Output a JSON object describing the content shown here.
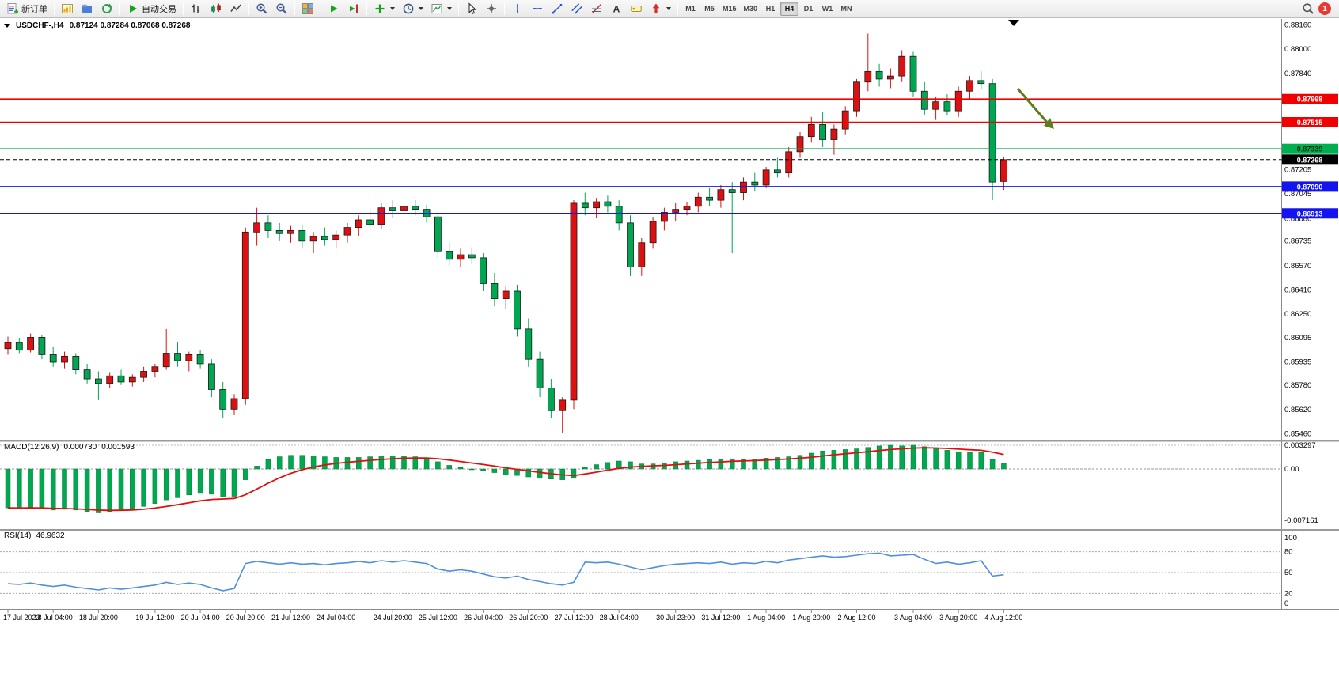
{
  "toolbar": {
    "new_order_label": "新订单",
    "autotrading_label": "自动交易",
    "notification_count": "1",
    "active_timeframe": "H4",
    "timeframes": [
      "M1",
      "M5",
      "M15",
      "M30",
      "H1",
      "H4",
      "D1",
      "W1",
      "MN"
    ],
    "left_icons": [
      {
        "name": "new-chart-icon",
        "kind": "newchart"
      },
      {
        "name": "profiles-icon",
        "kind": "profiles"
      },
      {
        "name": "refresh-icon",
        "kind": "refresh"
      }
    ],
    "tools": [
      {
        "sep": true
      },
      {
        "name": "bar-chart-icon",
        "kind": "ohlcbars"
      },
      {
        "name": "candlestick-chart-icon",
        "kind": "candles2"
      },
      {
        "name": "line-chart-icon",
        "kind": "linechart"
      },
      {
        "sep": true
      },
      {
        "name": "zoom-in-icon",
        "kind": "zoomin"
      },
      {
        "name": "zoom-out-icon",
        "kind": "zoomout"
      },
      {
        "sep": true
      },
      {
        "name": "tile-windows-icon",
        "kind": "tile"
      },
      {
        "sep": true
      },
      {
        "name": "auto-scroll-icon",
        "kind": "autoscroll"
      },
      {
        "name": "chart-shift-icon",
        "kind": "chartshift"
      },
      {
        "sep": true
      },
      {
        "name": "indicators-button",
        "kind": "indicators",
        "caret": true
      },
      {
        "name": "periods-button",
        "kind": "periods",
        "caret": true
      },
      {
        "name": "templates-button",
        "kind": "templates",
        "caret": true
      },
      {
        "sep": true
      },
      {
        "name": "cursor-icon",
        "kind": "cursor"
      },
      {
        "name": "crosshair-icon",
        "kind": "crosshair"
      },
      {
        "sep": true
      },
      {
        "name": "vertical-line-icon",
        "kind": "vline"
      },
      {
        "name": "horizontal-line-icon",
        "kind": "hline"
      },
      {
        "name": "trendline-icon",
        "kind": "tline"
      },
      {
        "name": "equidistant-channel-icon",
        "kind": "channel"
      },
      {
        "name": "fibonacci-icon",
        "kind": "fibo"
      },
      {
        "name": "text-icon",
        "kind": "textA",
        "glyph": "A"
      },
      {
        "name": "text-label-icon",
        "kind": "label"
      },
      {
        "name": "arrows-icon",
        "kind": "arrows",
        "caret": true
      },
      {
        "sep": true
      }
    ]
  },
  "chart_data": {
    "type": "candlestick",
    "symbol": "USDCHF-",
    "timeframe": "H4",
    "title_symbol": "USDCHF-,H4",
    "title_ohlc": "0.87124 0.87284 0.87068 0.87268",
    "current_bar": {
      "open": 0.87124,
      "high": 0.87284,
      "low": 0.87068,
      "close": 0.87268
    },
    "colors": {
      "bull": "#dd1111",
      "bear": "#00a651",
      "macd_hist": "#00a94f",
      "macd_signal": "#e01010",
      "rsi_line": "#4f8fdd",
      "arrow": "#5f7d1c"
    },
    "price_axis": {
      "min": 0.8546,
      "max": 0.8816,
      "labels": [
        "0.88160",
        "0.88000",
        "0.87840",
        "0.87205",
        "0.87045",
        "0.86880",
        "0.86735",
        "0.86570",
        "0.86410",
        "0.86250",
        "0.86095",
        "0.85935",
        "0.85780",
        "0.85620",
        "0.85460"
      ]
    },
    "hlines": [
      {
        "price": 0.87668,
        "label": "0.87668",
        "color": "#f00000"
      },
      {
        "price": 0.87515,
        "label": "0.87515",
        "color": "#f00000"
      },
      {
        "price": 0.87339,
        "label": "0.87339",
        "color": "#00b050",
        "text": "#00320a"
      },
      {
        "price": 0.87268,
        "label": "0.87268",
        "color": "#000000",
        "dash": "5 3",
        "width": 1
      },
      {
        "price": 0.8709,
        "label": "0.87090",
        "color": "#1414f0"
      },
      {
        "price": 0.86913,
        "label": "0.86913",
        "color": "#1414f0"
      }
    ],
    "time_labels": [
      "17 Jul 2023",
      "18 Jul 04:00",
      "18 Jul 20:00",
      "19 Jul 12:00",
      "20 Jul 04:00",
      "20 Jul 20:00",
      "21 Jul 12:00",
      "24 Jul 04:00",
      "24 Jul 20:00",
      "25 Jul 12:00",
      "26 Jul 04:00",
      "26 Jul 20:00",
      "27 Jul 12:00",
      "28 Jul 04:00",
      "30 Jul 23:00",
      "31 Jul 12:00",
      "1 Aug 04:00",
      "1 Aug 20:00",
      "2 Aug 12:00",
      "3 Aug 04:00",
      "3 Aug 20:00",
      "4 Aug 12:00"
    ],
    "candles": [
      [
        0.8602,
        0.861,
        0.8598,
        0.8606
      ],
      [
        0.8606,
        0.8609,
        0.8599,
        0.8601
      ],
      [
        0.8601,
        0.8612,
        0.85995,
        0.86095
      ],
      [
        0.86095,
        0.8611,
        0.8595,
        0.8598
      ],
      [
        0.8598,
        0.8603,
        0.859,
        0.8593
      ],
      [
        0.8593,
        0.86,
        0.8589,
        0.8597
      ],
      [
        0.8597,
        0.8599,
        0.8585,
        0.8588
      ],
      [
        0.8588,
        0.8592,
        0.8579,
        0.8582
      ],
      [
        0.8582,
        0.8587,
        0.8568,
        0.8579
      ],
      [
        0.8579,
        0.8586,
        0.8576,
        0.8584
      ],
      [
        0.8584,
        0.8588,
        0.8578,
        0.858
      ],
      [
        0.858,
        0.8585,
        0.8577,
        0.8583
      ],
      [
        0.8583,
        0.859,
        0.858,
        0.8587
      ],
      [
        0.8587,
        0.8592,
        0.8583,
        0.859
      ],
      [
        0.859,
        0.8615,
        0.8588,
        0.8599
      ],
      [
        0.8599,
        0.8606,
        0.859,
        0.8594
      ],
      [
        0.8594,
        0.86,
        0.8587,
        0.8598
      ],
      [
        0.8598,
        0.8601,
        0.8589,
        0.8592
      ],
      [
        0.8592,
        0.8595,
        0.857,
        0.8575
      ],
      [
        0.8575,
        0.858,
        0.8556,
        0.8562
      ],
      [
        0.8562,
        0.8572,
        0.8558,
        0.8569
      ],
      [
        0.8569,
        0.8682,
        0.8565,
        0.8679
      ],
      [
        0.8679,
        0.8695,
        0.867,
        0.8685
      ],
      [
        0.8685,
        0.869,
        0.8675,
        0.868
      ],
      [
        0.868,
        0.8685,
        0.8673,
        0.8678
      ],
      [
        0.8678,
        0.8683,
        0.8672,
        0.868
      ],
      [
        0.868,
        0.8684,
        0.8668,
        0.8673
      ],
      [
        0.8673,
        0.8679,
        0.8665,
        0.8676
      ],
      [
        0.8676,
        0.8682,
        0.867,
        0.8674
      ],
      [
        0.8674,
        0.868,
        0.8668,
        0.8677
      ],
      [
        0.8677,
        0.8685,
        0.8672,
        0.8682
      ],
      [
        0.8682,
        0.869,
        0.8676,
        0.8687
      ],
      [
        0.8687,
        0.8695,
        0.868,
        0.8684
      ],
      [
        0.8684,
        0.8698,
        0.8681,
        0.8695
      ],
      [
        0.8695,
        0.87,
        0.8688,
        0.8693
      ],
      [
        0.8693,
        0.8699,
        0.8687,
        0.8696
      ],
      [
        0.8696,
        0.87,
        0.869,
        0.8694
      ],
      [
        0.8694,
        0.8697,
        0.8685,
        0.8689
      ],
      [
        0.8689,
        0.8692,
        0.8662,
        0.8666
      ],
      [
        0.8666,
        0.8672,
        0.8657,
        0.8661
      ],
      [
        0.8661,
        0.8668,
        0.8656,
        0.8664
      ],
      [
        0.8664,
        0.8669,
        0.8658,
        0.8662
      ],
      [
        0.8662,
        0.8665,
        0.864,
        0.8645
      ],
      [
        0.8645,
        0.8652,
        0.863,
        0.8635
      ],
      [
        0.8635,
        0.8643,
        0.8628,
        0.864
      ],
      [
        0.864,
        0.8644,
        0.861,
        0.8615
      ],
      [
        0.8615,
        0.8622,
        0.859,
        0.8595
      ],
      [
        0.8595,
        0.86,
        0.857,
        0.8576
      ],
      [
        0.8576,
        0.8582,
        0.8556,
        0.8561
      ],
      [
        0.8561,
        0.857,
        0.8546,
        0.8568
      ],
      [
        0.8568,
        0.87,
        0.8562,
        0.8698
      ],
      [
        0.8698,
        0.8705,
        0.869,
        0.8695
      ],
      [
        0.8695,
        0.8701,
        0.8688,
        0.8699
      ],
      [
        0.8699,
        0.8703,
        0.8692,
        0.8696
      ],
      [
        0.8696,
        0.87,
        0.868,
        0.8685
      ],
      [
        0.8685,
        0.869,
        0.865,
        0.8656
      ],
      [
        0.8656,
        0.8675,
        0.865,
        0.8672
      ],
      [
        0.8672,
        0.8689,
        0.8668,
        0.8686
      ],
      [
        0.8686,
        0.8695,
        0.868,
        0.8692
      ],
      [
        0.8692,
        0.8698,
        0.8686,
        0.8694
      ],
      [
        0.8694,
        0.8699,
        0.869,
        0.8696
      ],
      [
        0.8696,
        0.8705,
        0.8692,
        0.8702
      ],
      [
        0.8702,
        0.8708,
        0.8696,
        0.87
      ],
      [
        0.87,
        0.871,
        0.8695,
        0.8707
      ],
      [
        0.8707,
        0.8712,
        0.8665,
        0.8705
      ],
      [
        0.8705,
        0.8715,
        0.87,
        0.8712
      ],
      [
        0.8712,
        0.8718,
        0.8706,
        0.871
      ],
      [
        0.871,
        0.8722,
        0.8708,
        0.872
      ],
      [
        0.872,
        0.8728,
        0.8715,
        0.8718
      ],
      [
        0.8718,
        0.8735,
        0.8715,
        0.8732
      ],
      [
        0.8732,
        0.8745,
        0.8728,
        0.8742
      ],
      [
        0.8742,
        0.8755,
        0.8738,
        0.875
      ],
      [
        0.875,
        0.8758,
        0.8735,
        0.874
      ],
      [
        0.874,
        0.875,
        0.873,
        0.8747
      ],
      [
        0.8747,
        0.8762,
        0.8743,
        0.8759
      ],
      [
        0.8759,
        0.878,
        0.8755,
        0.8778
      ],
      [
        0.8778,
        0.881,
        0.8772,
        0.8785
      ],
      [
        0.8785,
        0.879,
        0.8775,
        0.878
      ],
      [
        0.878,
        0.8787,
        0.8774,
        0.8782
      ],
      [
        0.8782,
        0.8799,
        0.8778,
        0.8795
      ],
      [
        0.8795,
        0.8798,
        0.8768,
        0.8772
      ],
      [
        0.8772,
        0.8778,
        0.8756,
        0.876
      ],
      [
        0.876,
        0.8768,
        0.8753,
        0.8765
      ],
      [
        0.8765,
        0.877,
        0.8756,
        0.8759
      ],
      [
        0.8759,
        0.8775,
        0.8755,
        0.8772
      ],
      [
        0.8772,
        0.8782,
        0.8766,
        0.8779
      ],
      [
        0.8779,
        0.8785,
        0.8773,
        0.8777
      ],
      [
        0.8777,
        0.878,
        0.87,
        0.8712
      ],
      [
        0.87124,
        0.87284,
        0.87068,
        0.87268
      ]
    ],
    "macd": {
      "label": "MACD(12,26,9)",
      "value_main": "0.000730",
      "value_signal": "0.001593",
      "axis_labels": [
        "0.003297",
        "0.00",
        "-0.007161"
      ],
      "axis": {
        "max": 0.003297,
        "zero": 0.0,
        "min": -0.007161
      },
      "hist": [
        -0.0054,
        -0.0055,
        -0.0053,
        -0.0055,
        -0.0057,
        -0.0056,
        -0.0057,
        -0.0059,
        -0.0061,
        -0.0059,
        -0.0057,
        -0.0055,
        -0.0052,
        -0.0048,
        -0.0043,
        -0.004,
        -0.0036,
        -0.0034,
        -0.0035,
        -0.0039,
        -0.0038,
        -0.0015,
        0.0004,
        0.0013,
        0.0017,
        0.0019,
        0.0019,
        0.0018,
        0.0017,
        0.0016,
        0.0016,
        0.0016,
        0.0017,
        0.0018,
        0.0018,
        0.0018,
        0.0017,
        0.0015,
        0.001,
        0.0005,
        0.0002,
        0.0,
        -0.0002,
        -0.0005,
        -0.0008,
        -0.0009,
        -0.0011,
        -0.0013,
        -0.0014,
        -0.0015,
        -0.0013,
        0.0002,
        0.0006,
        0.0009,
        0.0011,
        0.001,
        0.0007,
        0.0007,
        0.0008,
        0.001,
        0.0011,
        0.0012,
        0.0013,
        0.0013,
        0.0014,
        0.0013,
        0.0014,
        0.0015,
        0.0016,
        0.0017,
        0.0019,
        0.0022,
        0.0025,
        0.0026,
        0.0027,
        0.0028,
        0.003,
        0.0032,
        0.0033,
        0.0032,
        0.0033,
        0.0031,
        0.0028,
        0.0026,
        0.0024,
        0.0023,
        0.0023,
        0.0013,
        0.00073
      ]
    },
    "rsi": {
      "label": "RSI(14)",
      "value": "46.9632",
      "levels": [
        80,
        50,
        20
      ],
      "axis_labels": [
        "100",
        "80",
        "50",
        "20",
        "0"
      ],
      "values": [
        34,
        33,
        35,
        32,
        30,
        32,
        29,
        27,
        25,
        28,
        26,
        28,
        30,
        32,
        36,
        33,
        35,
        33,
        28,
        24,
        27,
        63,
        66,
        64,
        62,
        64,
        62,
        63,
        61,
        63,
        64,
        66,
        64,
        67,
        65,
        67,
        65,
        63,
        55,
        52,
        54,
        52,
        48,
        44,
        42,
        45,
        40,
        37,
        34,
        32,
        36,
        65,
        64,
        65,
        62,
        58,
        54,
        57,
        60,
        62,
        63,
        64,
        63,
        65,
        62,
        64,
        63,
        66,
        64,
        68,
        70,
        72,
        74,
        72,
        73,
        75,
        77,
        78,
        74,
        75,
        76,
        69,
        63,
        65,
        62,
        64,
        67,
        45,
        46.97
      ]
    }
  }
}
